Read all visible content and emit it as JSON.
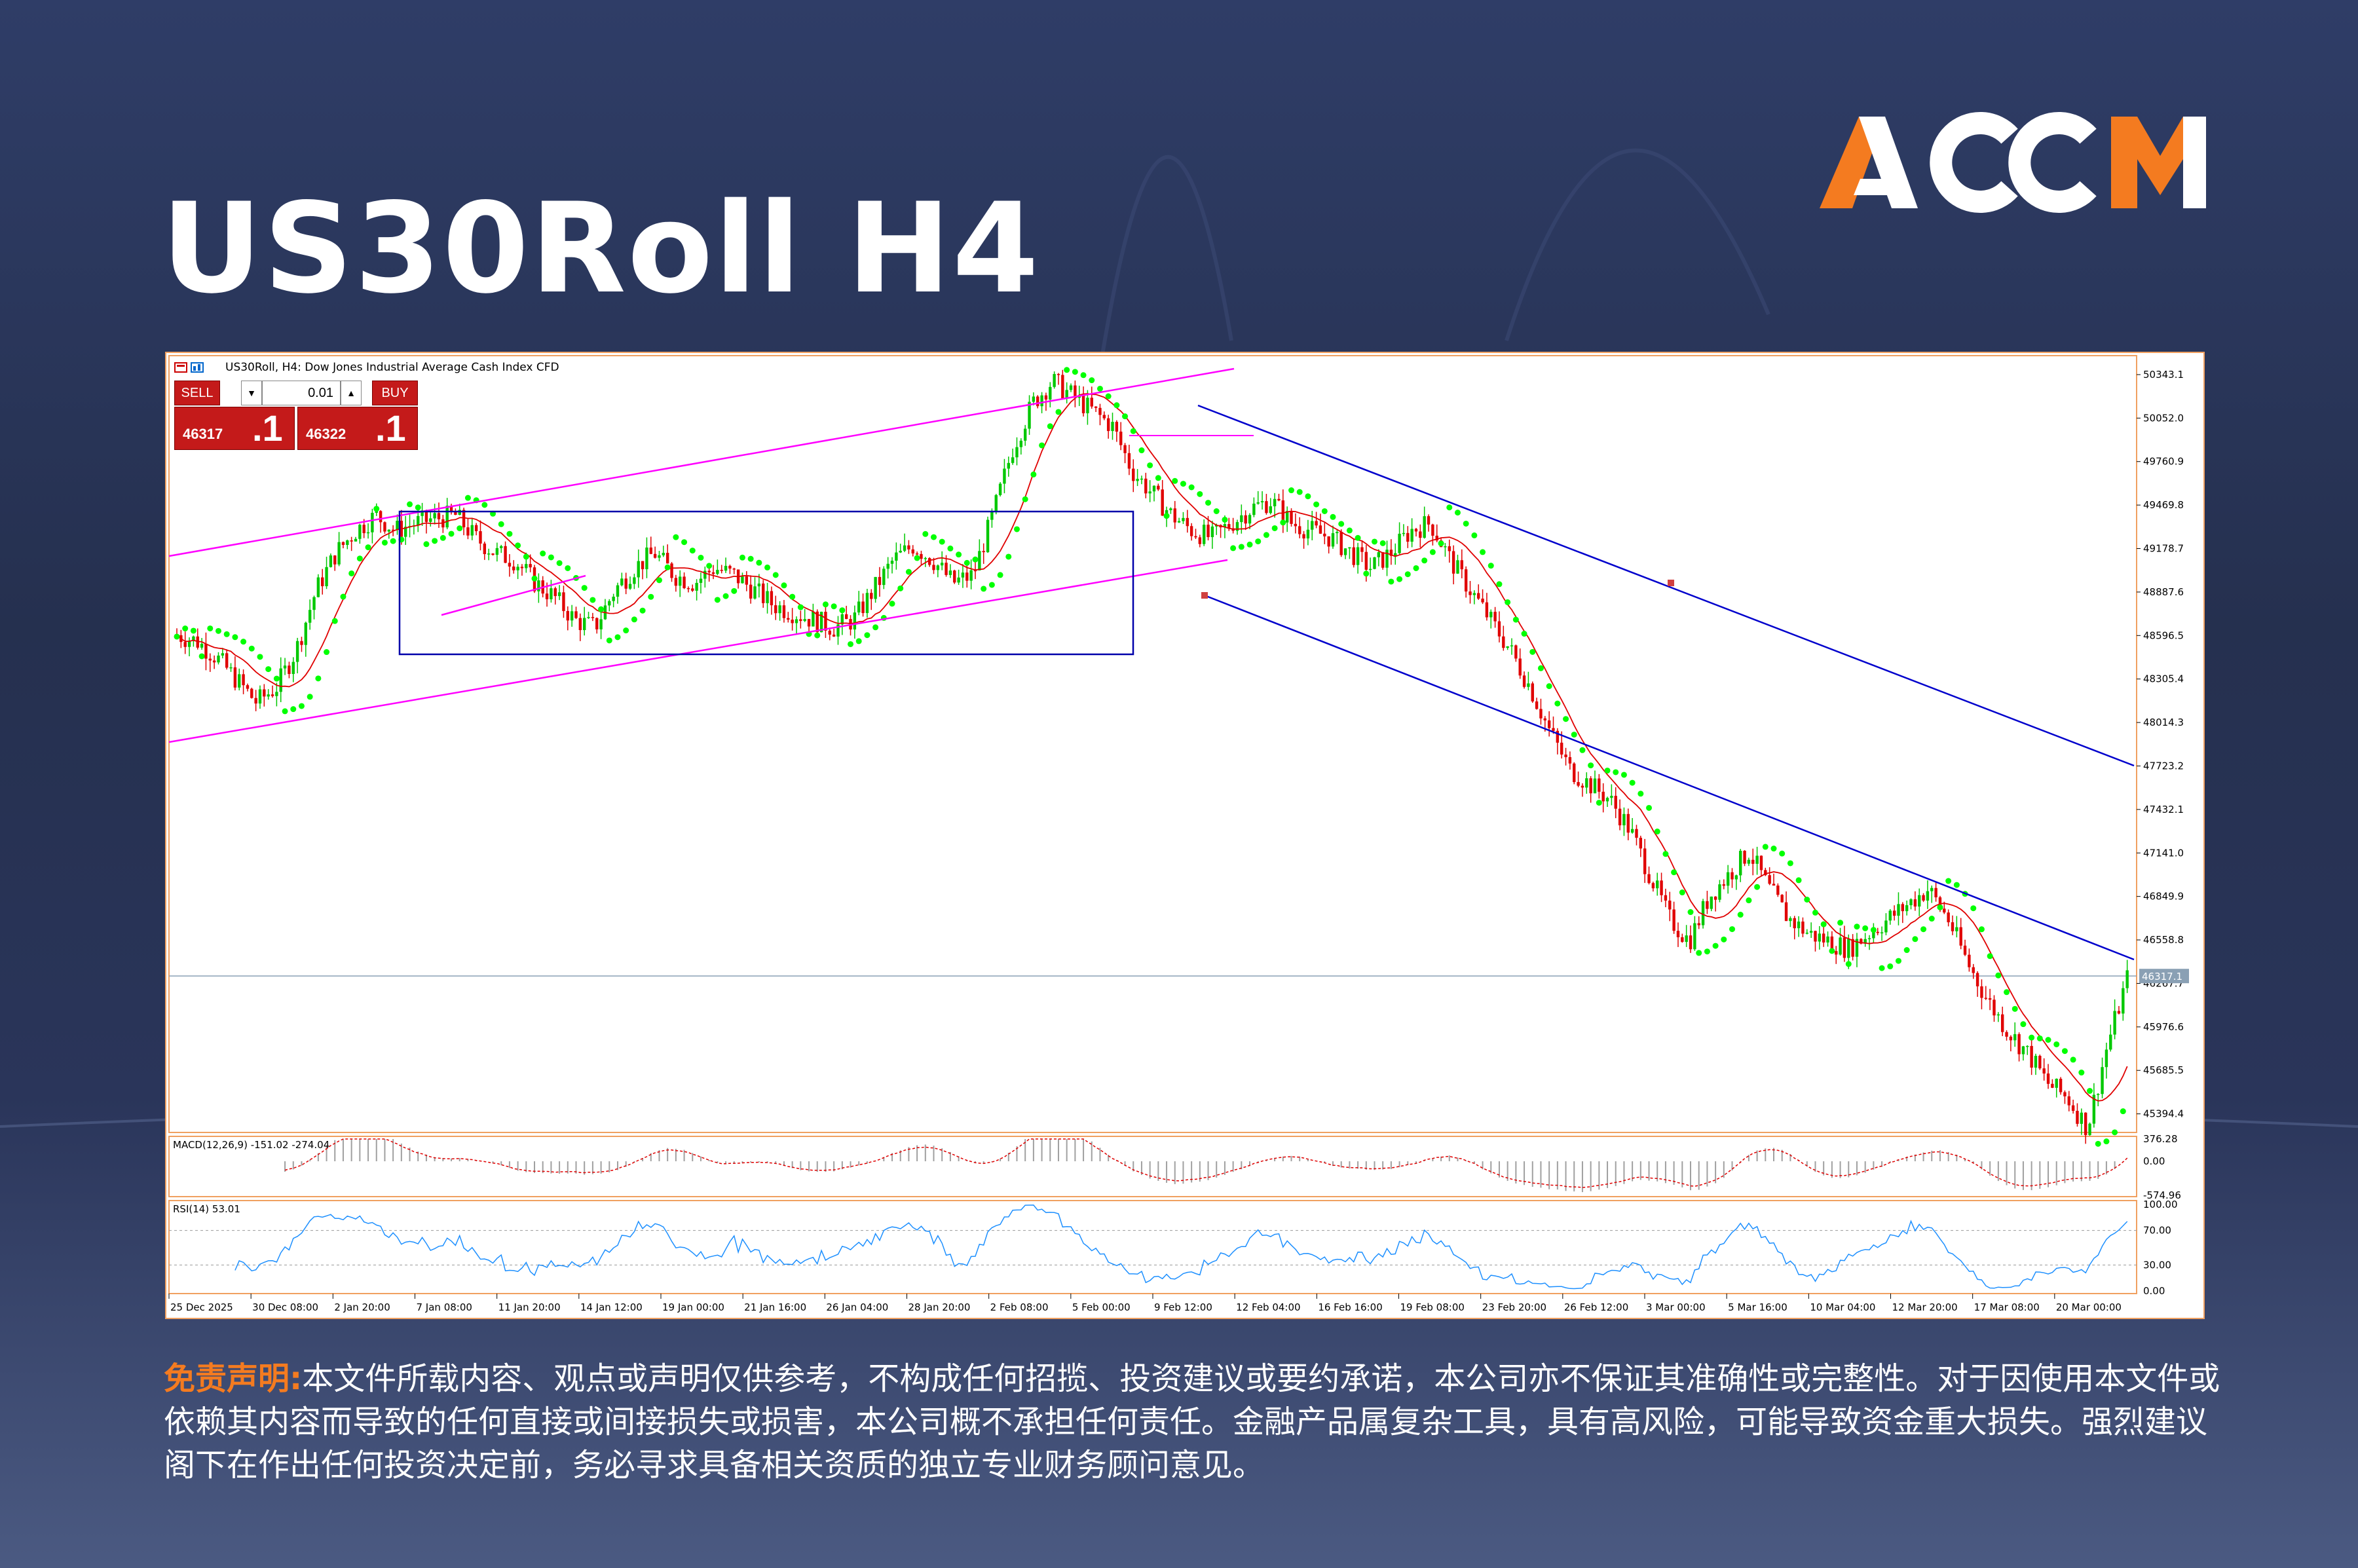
{
  "page": {
    "title": "US30Roll H4",
    "logo_text": "ACCM"
  },
  "colors": {
    "brand_orange": "#f47b20",
    "bull": "#00c800",
    "bear": "#e00000",
    "sar": "#00ff00",
    "ma": "#e00000",
    "channel_up": "#ff00ff",
    "channel_down": "#0000cc",
    "box": "#0000aa",
    "rsi": "#1e90ff"
  },
  "chart": {
    "symbol_title": "US30Roll, H4:  Dow Jones Industrial Average Cash Index CFD",
    "trade_panel": {
      "sell_label": "SELL",
      "buy_label": "BUY",
      "lot": "0.01",
      "sell_price_main": "46317",
      "sell_price_big": ".1",
      "buy_price_main": "46322",
      "buy_price_big": ".1"
    },
    "current_price_label": "46317.1",
    "macd_label": "MACD(12,26,9) -151.02 -274.04",
    "rsi_label": "RSI(14) 53.01"
  },
  "chart_data": {
    "type": "candlestick",
    "price_axis_ticks": [
      "50343.1",
      "50052.0",
      "49760.9",
      "49469.8",
      "49178.7",
      "48887.6",
      "48596.5",
      "48305.4",
      "48014.3",
      "47723.2",
      "47432.1",
      "47141.0",
      "46849.9",
      "46558.8",
      "46267.7",
      "45976.6",
      "45685.5",
      "45394.4"
    ],
    "ylim": [
      45270,
      50470
    ],
    "current_price": 46317.1,
    "time_axis_ticks": [
      "25 Dec 2025",
      "30 Dec 08:00",
      "2 Jan 20:00",
      "7 Jan 08:00",
      "11 Jan 20:00",
      "14 Jan 12:00",
      "19 Jan 00:00",
      "21 Jan 16:00",
      "26 Jan 04:00",
      "28 Jan 20:00",
      "2 Feb 08:00",
      "5 Feb 00:00",
      "9 Feb 12:00",
      "12 Feb 04:00",
      "16 Feb 16:00",
      "19 Feb 08:00",
      "23 Feb 20:00",
      "26 Feb 12:00",
      "3 Mar 00:00",
      "5 Mar 16:00",
      "10 Mar 04:00",
      "12 Mar 20:00",
      "17 Mar 08:00",
      "20 Mar 00:00"
    ],
    "close_path": [
      48600,
      48560,
      48450,
      48300,
      48150,
      48250,
      48500,
      48900,
      49150,
      49300,
      49400,
      49300,
      49350,
      49380,
      49400,
      49250,
      49150,
      49100,
      48950,
      48850,
      48700,
      48650,
      48900,
      49050,
      49150,
      49000,
      48950,
      49050,
      49000,
      48900,
      48800,
      48750,
      48700,
      48650,
      48700,
      48900,
      49100,
      49200,
      49100,
      48950,
      49000,
      49400,
      49850,
      50150,
      50300,
      50200,
      50100,
      50000,
      49700,
      49550,
      49400,
      49300,
      49250,
      49350,
      49450,
      49500,
      49350,
      49300,
      49250,
      49150,
      49050,
      49150,
      49300,
      49350,
      49100,
      48900,
      48700,
      48500,
      48250,
      47950,
      47700,
      47600,
      47500,
      47300,
      47000,
      46700,
      46550,
      46850,
      47000,
      47150,
      46900,
      46700,
      46600,
      46550,
      46500,
      46600,
      46700,
      46800,
      46900,
      46700,
      46400,
      46150,
      45950,
      45800,
      45600,
      45500,
      45300,
      45850,
      46300
    ],
    "macd_axis_ticks": [
      "376.28",
      "0.00",
      "-574.96"
    ],
    "macd_range": [
      -574.96,
      376.28
    ],
    "rsi_axis_ticks": [
      "100.00",
      "70.00",
      "30.00",
      "0.00"
    ],
    "rsi_range": [
      0,
      100
    ],
    "rsi_levels": [
      70,
      30
    ]
  },
  "disclaimer": {
    "label": "免责声明:",
    "text": "本文件所载内容、观点或声明仅供参考，不构成任何招揽、投资建议或要约承诺，本公司亦不保证其准确性或完整性。对于因使用本文件或依赖其内容而导致的任何直接或间接损失或损害，本公司概不承担任何责任。金融产品属复杂工具，具有高风险，可能导致资金重大损失。强烈建议阁下在作出任何投资决定前，务必寻求具备相关资质的独立专业财务顾问意见。"
  }
}
